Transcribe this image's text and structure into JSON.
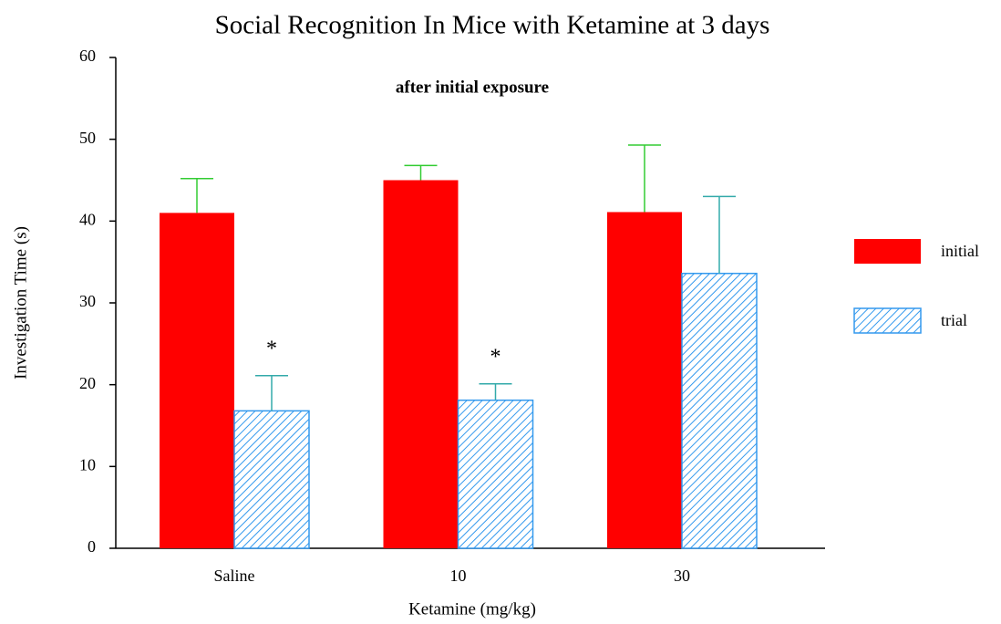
{
  "chart_data": {
    "type": "bar",
    "title": "Social Recognition In Mice with Ketamine at 3 days",
    "subtitle": "after initial exposure",
    "x_label": "Ketamine (mg/kg)",
    "y_label": "Investigation Time (s)",
    "categories": [
      "Saline",
      "10",
      "30"
    ],
    "series": [
      {
        "name": "initial",
        "color": "#ff0000",
        "error_color": "#33cc33",
        "hatch": false,
        "values": [
          41.0,
          45.0,
          41.1
        ],
        "errors": [
          4.2,
          1.8,
          8.2
        ]
      },
      {
        "name": "trial",
        "color": "#3399ee",
        "error_color": "#33aaaa",
        "hatch": true,
        "values": [
          16.8,
          18.1,
          33.6
        ],
        "errors": [
          4.3,
          2.0,
          9.4
        ],
        "markers": [
          "*",
          "*",
          null
        ]
      }
    ],
    "ylim": [
      0,
      60
    ],
    "yticks": [
      0,
      10,
      20,
      30,
      40,
      50,
      60
    ],
    "legend": "right"
  }
}
